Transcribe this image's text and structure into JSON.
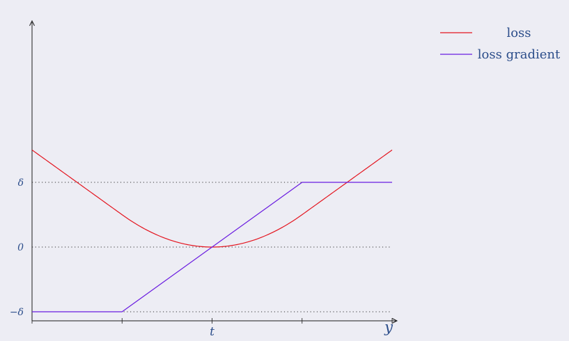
{
  "chart_data": {
    "type": "line",
    "title": "",
    "xlabel": "y",
    "ylabel": "",
    "grid": "dotted horizontal reference lines at y = -δ, 0, δ",
    "legend_placement": "top-right",
    "x_ticks": [
      "",
      "",
      "t",
      "",
      ""
    ],
    "y_ticks": [
      "−δ",
      "0",
      "δ"
    ],
    "x_range": [
      -4,
      4
    ],
    "y_range": [
      -1.0,
      3.5
    ],
    "parameters": {
      "t": 0,
      "delta": 1
    },
    "series": [
      {
        "name": "loss",
        "color": "#e4141e",
        "x": [
          -4,
          -3.5,
          -3,
          -2.5,
          -2,
          -1.5,
          -1,
          -0.5,
          0,
          0.5,
          1,
          1.5,
          2,
          2.5,
          3,
          3.5,
          4
        ],
        "values": [
          1.5,
          1.25,
          1.0,
          0.75,
          0.5,
          0.3,
          0.15,
          0.05,
          0,
          0.05,
          0.15,
          0.3,
          0.5,
          0.75,
          1.0,
          1.25,
          1.5
        ]
      },
      {
        "name": "loss gradient",
        "color": "#6a1ce0",
        "x": [
          -4,
          -2,
          2,
          4
        ],
        "values": [
          -1,
          -1,
          1,
          1
        ]
      }
    ]
  },
  "legend": [
    {
      "label": "loss",
      "color": "#e4141e"
    },
    {
      "label": "loss gradient",
      "color": "#6a1ce0"
    }
  ],
  "colors": {
    "axis": "#1a1a1a",
    "reference": "#333333",
    "text": "#2b4d8a"
  }
}
